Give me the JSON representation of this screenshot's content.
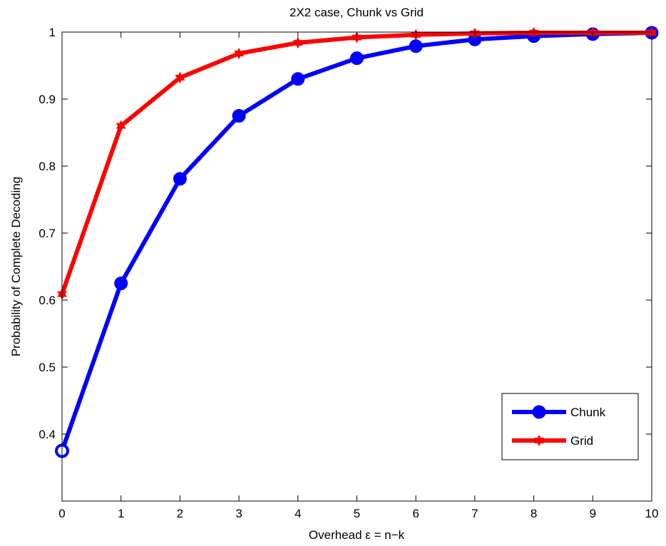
{
  "chart_data": {
    "type": "line",
    "title": "2X2 case, Chunk vs Grid",
    "xlabel": "Overhead ε = n−k",
    "ylabel": "Probability of Complete Decoding",
    "xlim": [
      0,
      10
    ],
    "ylim": [
      0.3,
      1.0
    ],
    "xticks": [
      "0",
      "1",
      "2",
      "3",
      "4",
      "5",
      "6",
      "7",
      "8",
      "9",
      "10"
    ],
    "yticks": [
      "0.4",
      "0.5",
      "0.6",
      "0.7",
      "0.8",
      "0.9",
      "1"
    ],
    "x": [
      0,
      1,
      2,
      3,
      4,
      5,
      6,
      7,
      8,
      9,
      10
    ],
    "grid": false,
    "legend_position": "bottom-right",
    "series": [
      {
        "name": "Chunk",
        "color": "#0000ff",
        "marker": "circle",
        "values": [
          0.375,
          0.625,
          0.781,
          0.875,
          0.93,
          0.961,
          0.979,
          0.989,
          0.994,
          0.997,
          0.999
        ]
      },
      {
        "name": "Grid",
        "color": "#ff0000",
        "marker": "hexagram",
        "values": [
          0.609,
          0.86,
          0.932,
          0.968,
          0.984,
          0.992,
          0.996,
          0.998,
          0.999,
          0.999,
          0.999
        ]
      }
    ]
  }
}
